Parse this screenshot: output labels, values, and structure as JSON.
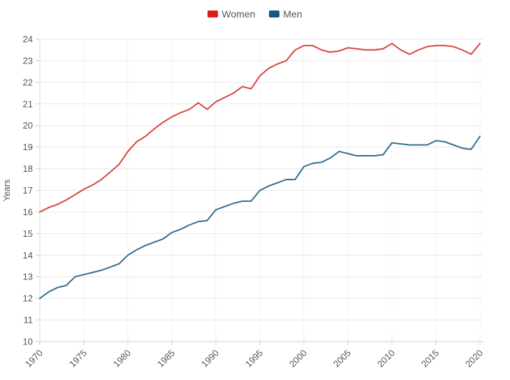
{
  "chart_data": {
    "type": "line",
    "title": "",
    "xlabel": "",
    "ylabel": "Years",
    "ylim": [
      10,
      24
    ],
    "ytick_step": 1,
    "xlim": [
      1970,
      2020
    ],
    "xticks": [
      1970,
      1975,
      1980,
      1985,
      1990,
      1995,
      2000,
      2005,
      2010,
      2015,
      2020
    ],
    "grid": true,
    "grid_color": "#e8e8e8",
    "axis_color": "#cccccc",
    "tick_label_color": "#555555",
    "legend_position": "top",
    "x_start_year": 1970,
    "series": [
      {
        "name": "Women",
        "color": "#d64541",
        "swatch_color": "#e0191c",
        "values": [
          16.0,
          16.2,
          16.35,
          16.55,
          16.8,
          17.05,
          17.25,
          17.5,
          17.85,
          18.2,
          18.8,
          19.25,
          19.5,
          19.85,
          20.15,
          20.4,
          20.6,
          20.75,
          21.05,
          20.75,
          21.1,
          21.3,
          21.5,
          21.8,
          21.7,
          22.3,
          22.65,
          22.85,
          23.0,
          23.5,
          23.7,
          23.7,
          23.5,
          23.4,
          23.45,
          23.6,
          23.55,
          23.5,
          23.5,
          23.55,
          23.8,
          23.5,
          23.3,
          23.5,
          23.65,
          23.7,
          23.7,
          23.65,
          23.5,
          23.3,
          23.8
        ]
      },
      {
        "name": "Men",
        "color": "#336f91",
        "swatch_color": "#17567e",
        "values": [
          12.0,
          12.3,
          12.5,
          12.6,
          13.0,
          13.1,
          13.2,
          13.3,
          13.45,
          13.6,
          14.0,
          14.25,
          14.45,
          14.6,
          14.75,
          15.05,
          15.2,
          15.4,
          15.55,
          15.6,
          16.1,
          16.25,
          16.4,
          16.5,
          16.5,
          17.0,
          17.2,
          17.35,
          17.5,
          17.5,
          18.1,
          18.25,
          18.3,
          18.5,
          18.8,
          18.7,
          18.6,
          18.6,
          18.6,
          18.65,
          19.2,
          19.15,
          19.1,
          19.1,
          19.1,
          19.3,
          19.25,
          19.1,
          18.95,
          18.9,
          19.5
        ]
      }
    ]
  }
}
